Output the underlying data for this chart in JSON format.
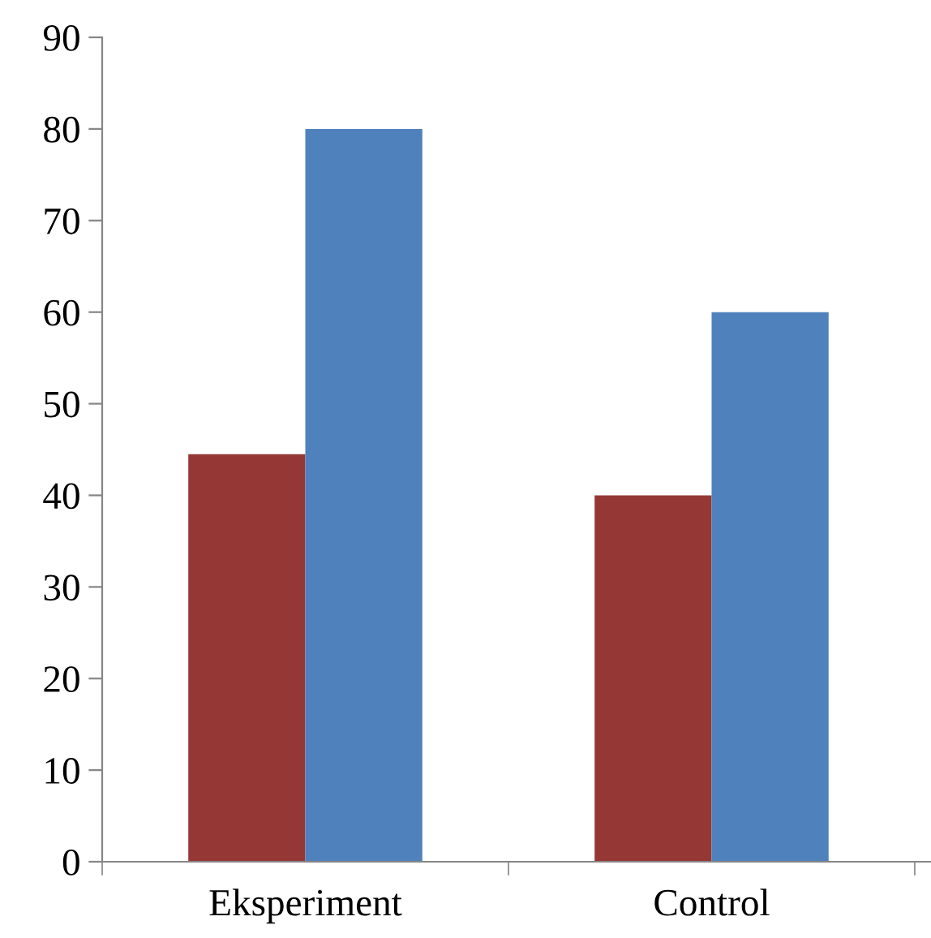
{
  "chart_data": {
    "type": "bar",
    "categories": [
      "Eksperiment",
      "Control"
    ],
    "series": [
      {
        "color": "#953735",
        "values": [
          44.5,
          40
        ]
      },
      {
        "color": "#4f81bd",
        "values": [
          80,
          60
        ]
      }
    ],
    "ylim": [
      0,
      90
    ],
    "yticks": [
      0,
      10,
      20,
      30,
      40,
      50,
      60,
      70,
      80,
      90
    ],
    "grid": false
  }
}
